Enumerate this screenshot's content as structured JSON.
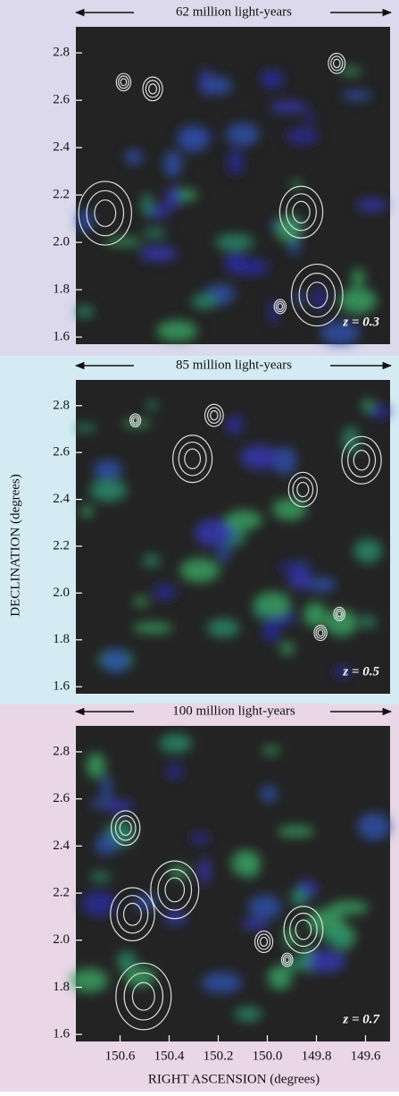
{
  "chart_data": [
    {
      "type": "image",
      "annotation": "62 million light-years",
      "label": "z = 0.3",
      "ylim": [
        1.57,
        2.91
      ],
      "yticks": [
        1.6,
        1.8,
        {
          "value": 2,
          "label": "2.0"
        },
        2.2,
        2.4,
        2.6,
        2.8
      ]
    },
    {
      "type": "image",
      "annotation": "85 million light-years",
      "label": "z = 0.5",
      "ylabel": "DECLINATION (degrees)",
      "ylim": [
        1.57,
        2.91
      ],
      "yticks": [
        1.6,
        1.8,
        {
          "value": 2,
          "label": "2.0"
        },
        2.2,
        2.4,
        2.6,
        2.8
      ]
    },
    {
      "type": "image",
      "annotation": "100 million light-years",
      "label": "z = 0.7",
      "xlabel": "RIGHT ASCENSION (degrees)",
      "ylim": [
        1.57,
        2.91
      ],
      "yticks": [
        1.6,
        1.8,
        {
          "value": 2,
          "label": "2.0"
        },
        2.2,
        2.4,
        2.6,
        2.8
      ],
      "xlim": [
        150.78,
        149.5
      ],
      "xticks": [
        150.6,
        150.4,
        150.2,
        {
          "value": 150,
          "label": "150.0"
        },
        149.8,
        149.6
      ]
    }
  ]
}
